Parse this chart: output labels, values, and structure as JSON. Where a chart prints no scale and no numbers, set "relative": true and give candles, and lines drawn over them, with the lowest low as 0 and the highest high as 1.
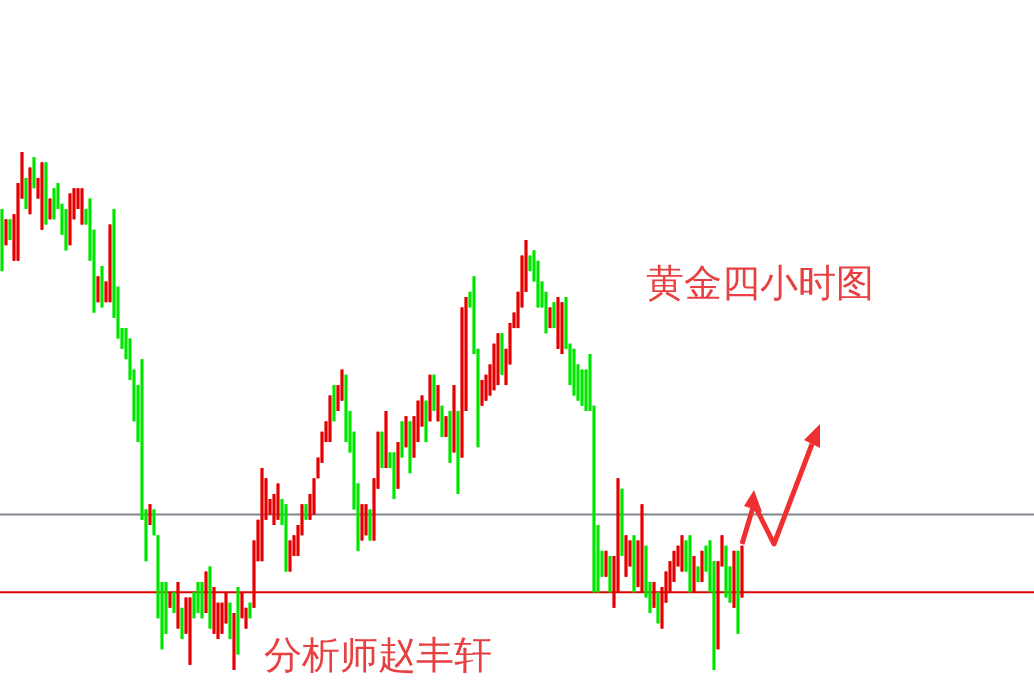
{
  "chart_data": {
    "type": "candlestick",
    "relative": true,
    "categories": [
      null,
      null,
      null,
      null,
      null,
      null,
      null,
      null,
      null,
      null,
      null,
      null,
      null,
      null,
      null,
      null,
      null,
      null,
      null,
      null,
      null,
      null,
      null,
      null,
      null,
      null,
      null,
      null,
      null,
      null,
      null,
      null,
      null,
      null,
      null,
      null,
      null,
      null,
      null,
      null,
      null,
      null,
      null,
      null,
      null,
      null,
      null,
      null,
      null,
      null,
      null,
      null,
      null,
      null,
      null,
      null,
      null,
      null,
      null,
      null,
      null,
      null,
      null,
      null,
      null,
      null,
      null,
      null,
      null,
      null,
      null,
      null,
      null,
      null,
      null,
      null,
      null,
      null,
      null,
      null,
      null,
      null,
      null,
      null,
      null,
      null,
      null,
      null,
      null,
      null,
      null,
      null,
      null,
      null,
      null,
      null,
      null,
      null,
      null,
      null,
      null,
      null,
      null,
      null,
      null,
      null,
      null,
      null,
      null,
      null,
      null,
      null,
      null,
      null,
      null,
      null,
      null,
      null,
      null,
      null,
      null,
      null,
      null,
      null,
      null,
      null,
      null,
      null,
      null,
      null,
      null,
      null,
      null,
      null,
      null,
      null,
      null,
      null,
      null,
      null,
      null,
      null,
      null,
      null,
      null,
      null,
      null,
      null,
      null,
      null,
      null,
      null,
      null,
      null,
      null,
      null,
      null,
      null,
      null,
      null,
      null,
      null,
      null,
      null,
      null,
      null,
      null,
      null,
      null,
      null,
      null,
      null,
      null,
      null,
      null,
      null,
      null,
      null,
      null,
      null,
      null,
      null,
      null,
      null,
      null,
      null
    ],
    "ohlc": [
      [
        0.89,
        0.89,
        0.77,
        0.77
      ],
      [
        0.82,
        0.87,
        0.82,
        0.87
      ],
      [
        0.87,
        0.87,
        0.83,
        0.83
      ],
      [
        0.79,
        0.88,
        0.79,
        0.88
      ],
      [
        0.79,
        0.94,
        0.79,
        0.94
      ],
      [
        0.91,
        1.0,
        0.91,
        1.0
      ],
      [
        0.95,
        0.95,
        0.89,
        0.89
      ],
      [
        0.88,
        0.97,
        0.88,
        0.97
      ],
      [
        0.99,
        0.99,
        0.93,
        0.93
      ],
      [
        0.91,
        0.95,
        0.91,
        0.95
      ],
      [
        0.85,
        0.98,
        0.85,
        0.98
      ],
      [
        0.98,
        0.98,
        0.86,
        0.86
      ],
      [
        0.87,
        0.91,
        0.87,
        0.91
      ],
      [
        0.93,
        0.93,
        0.87,
        0.87
      ],
      [
        0.94,
        0.94,
        0.89,
        0.89
      ],
      [
        0.9,
        0.9,
        0.84,
        0.84
      ],
      [
        0.89,
        0.89,
        0.81,
        0.81
      ],
      [
        0.82,
        0.92,
        0.82,
        0.92
      ],
      [
        0.87,
        0.93,
        0.87,
        0.93
      ],
      [
        0.89,
        0.93,
        0.89,
        0.93
      ],
      [
        0.86,
        0.93,
        0.86,
        0.93
      ],
      [
        0.89,
        0.89,
        0.86,
        0.86
      ],
      [
        0.91,
        0.91,
        0.79,
        0.79
      ],
      [
        0.85,
        0.85,
        0.69,
        0.69
      ],
      [
        0.71,
        0.76,
        0.71,
        0.76
      ],
      [
        0.78,
        0.78,
        0.7,
        0.7
      ],
      [
        0.71,
        0.75,
        0.71,
        0.75
      ],
      [
        0.71,
        0.86,
        0.71,
        0.86
      ],
      [
        0.89,
        0.89,
        0.68,
        0.68
      ],
      [
        0.74,
        0.74,
        0.64,
        0.64
      ],
      [
        0.66,
        0.66,
        0.62,
        0.62
      ],
      [
        0.66,
        0.66,
        0.6,
        0.6
      ],
      [
        0.64,
        0.64,
        0.56,
        0.56
      ],
      [
        0.58,
        0.58,
        0.48,
        0.48
      ],
      [
        0.55,
        0.55,
        0.44,
        0.44
      ],
      [
        0.6,
        0.6,
        0.29,
        0.29
      ],
      [
        0.31,
        0.31,
        0.21,
        0.21
      ],
      [
        0.28,
        0.32,
        0.28,
        0.32
      ],
      [
        0.31,
        0.31,
        0.26,
        0.26
      ],
      [
        0.26,
        0.26,
        0.1,
        0.1
      ],
      [
        0.17,
        0.17,
        0.04,
        0.04
      ],
      [
        0.17,
        0.17,
        0.07,
        0.07
      ],
      [
        0.12,
        0.15,
        0.12,
        0.15
      ],
      [
        0.15,
        0.15,
        0.11,
        0.11
      ],
      [
        0.08,
        0.17,
        0.08,
        0.17
      ],
      [
        0.12,
        0.12,
        0.06,
        0.06
      ],
      [
        0.07,
        0.14,
        0.07,
        0.14
      ],
      [
        0.01,
        0.14,
        0.01,
        0.14
      ],
      [
        0.15,
        0.15,
        0.1,
        0.1
      ],
      [
        0.17,
        0.17,
        0.11,
        0.11
      ],
      [
        0.17,
        0.17,
        0.1,
        0.1
      ],
      [
        0.11,
        0.19,
        0.11,
        0.19
      ],
      [
        0.2,
        0.2,
        0.08,
        0.08
      ],
      [
        0.07,
        0.16,
        0.07,
        0.16
      ],
      [
        0.06,
        0.13,
        0.06,
        0.13
      ],
      [
        0.07,
        0.13,
        0.07,
        0.13
      ],
      [
        0.09,
        0.15,
        0.09,
        0.15
      ],
      [
        0.13,
        0.13,
        0.06,
        0.06
      ],
      [
        0.0,
        0.11,
        0.0,
        0.11
      ],
      [
        0.16,
        0.16,
        0.03,
        0.03
      ],
      [
        0.1,
        0.15,
        0.1,
        0.15
      ],
      [
        0.08,
        0.12,
        0.08,
        0.12
      ],
      [
        0.13,
        0.13,
        0.1,
        0.1
      ],
      [
        0.12,
        0.25,
        0.12,
        0.25
      ],
      [
        0.21,
        0.29,
        0.21,
        0.29
      ],
      [
        0.21,
        0.39,
        0.21,
        0.39
      ],
      [
        0.29,
        0.37,
        0.29,
        0.37
      ],
      [
        0.3,
        0.33,
        0.3,
        0.33
      ],
      [
        0.28,
        0.34,
        0.28,
        0.34
      ],
      [
        0.29,
        0.36,
        0.29,
        0.36
      ],
      [
        0.33,
        0.33,
        0.28,
        0.28
      ],
      [
        0.32,
        0.32,
        0.19,
        0.19
      ],
      [
        0.19,
        0.25,
        0.19,
        0.25
      ],
      [
        0.22,
        0.26,
        0.22,
        0.26
      ],
      [
        0.22,
        0.28,
        0.22,
        0.28
      ],
      [
        0.26,
        0.32,
        0.26,
        0.32
      ],
      [
        0.32,
        0.32,
        0.29,
        0.29
      ],
      [
        0.29,
        0.34,
        0.29,
        0.34
      ],
      [
        0.3,
        0.37,
        0.3,
        0.37
      ],
      [
        0.37,
        0.41,
        0.37,
        0.41
      ],
      [
        0.4,
        0.46,
        0.4,
        0.46
      ],
      [
        0.44,
        0.48,
        0.44,
        0.48
      ],
      [
        0.44,
        0.53,
        0.44,
        0.53
      ],
      [
        0.55,
        0.55,
        0.48,
        0.48
      ],
      [
        0.5,
        0.55,
        0.5,
        0.55
      ],
      [
        0.52,
        0.58,
        0.52,
        0.58
      ],
      [
        0.57,
        0.57,
        0.44,
        0.44
      ],
      [
        0.5,
        0.5,
        0.42,
        0.42
      ],
      [
        0.46,
        0.46,
        0.31,
        0.31
      ],
      [
        0.36,
        0.36,
        0.23,
        0.23
      ],
      [
        0.25,
        0.32,
        0.25,
        0.32
      ],
      [
        0.26,
        0.32,
        0.26,
        0.32
      ],
      [
        0.31,
        0.31,
        0.25,
        0.25
      ],
      [
        0.25,
        0.37,
        0.25,
        0.37
      ],
      [
        0.35,
        0.46,
        0.35,
        0.46
      ],
      [
        0.46,
        0.46,
        0.39,
        0.39
      ],
      [
        0.39,
        0.5,
        0.39,
        0.5
      ],
      [
        0.42,
        0.42,
        0.39,
        0.39
      ],
      [
        0.42,
        0.42,
        0.33,
        0.33
      ],
      [
        0.35,
        0.44,
        0.35,
        0.44
      ],
      [
        0.48,
        0.48,
        0.41,
        0.41
      ],
      [
        0.43,
        0.49,
        0.43,
        0.49
      ],
      [
        0.48,
        0.48,
        0.38,
        0.38
      ],
      [
        0.41,
        0.49,
        0.41,
        0.49
      ],
      [
        0.44,
        0.52,
        0.44,
        0.52
      ],
      [
        0.47,
        0.53,
        0.47,
        0.53
      ],
      [
        0.52,
        0.52,
        0.44,
        0.44
      ],
      [
        0.48,
        0.57,
        0.48,
        0.57
      ],
      [
        0.57,
        0.57,
        0.5,
        0.5
      ],
      [
        0.48,
        0.55,
        0.48,
        0.55
      ],
      [
        0.51,
        0.51,
        0.45,
        0.45
      ],
      [
        0.45,
        0.49,
        0.45,
        0.49
      ],
      [
        0.5,
        0.5,
        0.4,
        0.4
      ],
      [
        0.42,
        0.55,
        0.42,
        0.55
      ],
      [
        0.5,
        0.5,
        0.34,
        0.34
      ],
      [
        0.41,
        0.7,
        0.41,
        0.7
      ],
      [
        0.5,
        0.72,
        0.5,
        0.72
      ],
      [
        0.73,
        0.73,
        0.7,
        0.7
      ],
      [
        0.76,
        0.76,
        0.61,
        0.61
      ],
      [
        0.62,
        0.62,
        0.43,
        0.43
      ],
      [
        0.51,
        0.56,
        0.51,
        0.56
      ],
      [
        0.52,
        0.57,
        0.52,
        0.57
      ],
      [
        0.53,
        0.59,
        0.53,
        0.59
      ],
      [
        0.54,
        0.63,
        0.54,
        0.63
      ],
      [
        0.55,
        0.65,
        0.55,
        0.65
      ],
      [
        0.65,
        0.65,
        0.57,
        0.57
      ],
      [
        0.55,
        0.62,
        0.55,
        0.62
      ],
      [
        0.59,
        0.67,
        0.59,
        0.67
      ],
      [
        0.66,
        0.69,
        0.66,
        0.69
      ],
      [
        0.66,
        0.73,
        0.66,
        0.73
      ],
      [
        0.7,
        0.8,
        0.7,
        0.8
      ],
      [
        0.73,
        0.83,
        0.73,
        0.83
      ],
      [
        0.8,
        0.8,
        0.77,
        0.77
      ],
      [
        0.81,
        0.81,
        0.75,
        0.75
      ],
      [
        0.79,
        0.79,
        0.7,
        0.7
      ],
      [
        0.75,
        0.75,
        0.7,
        0.7
      ],
      [
        0.73,
        0.73,
        0.65,
        0.65
      ],
      [
        0.66,
        0.7,
        0.66,
        0.7
      ],
      [
        0.71,
        0.71,
        0.66,
        0.66
      ],
      [
        0.62,
        0.72,
        0.62,
        0.72
      ],
      [
        0.61,
        0.71,
        0.61,
        0.71
      ],
      [
        0.72,
        0.72,
        0.62,
        0.62
      ],
      [
        0.63,
        0.63,
        0.55,
        0.55
      ],
      [
        0.62,
        0.62,
        0.53,
        0.53
      ],
      [
        0.59,
        0.59,
        0.52,
        0.52
      ],
      [
        0.58,
        0.58,
        0.51,
        0.51
      ],
      [
        0.58,
        0.58,
        0.5,
        0.5
      ],
      [
        0.61,
        0.61,
        0.5,
        0.5
      ],
      [
        0.51,
        0.51,
        0.15,
        0.15
      ],
      [
        0.28,
        0.28,
        0.15,
        0.15
      ],
      [
        0.23,
        0.23,
        0.18,
        0.18
      ],
      [
        0.18,
        0.23,
        0.18,
        0.23
      ],
      [
        0.22,
        0.22,
        0.15,
        0.15
      ],
      [
        0.12,
        0.22,
        0.12,
        0.22
      ],
      [
        0.15,
        0.37,
        0.15,
        0.37
      ],
      [
        0.35,
        0.35,
        0.22,
        0.22
      ],
      [
        0.18,
        0.26,
        0.18,
        0.26
      ],
      [
        0.2,
        0.25,
        0.2,
        0.25
      ],
      [
        0.26,
        0.26,
        0.15,
        0.15
      ],
      [
        0.16,
        0.25,
        0.16,
        0.25
      ],
      [
        0.15,
        0.32,
        0.15,
        0.32
      ],
      [
        0.24,
        0.24,
        0.14,
        0.14
      ],
      [
        0.17,
        0.17,
        0.11,
        0.11
      ],
      [
        0.12,
        0.17,
        0.12,
        0.17
      ],
      [
        0.15,
        0.15,
        0.09,
        0.09
      ],
      [
        0.08,
        0.16,
        0.08,
        0.16
      ],
      [
        0.13,
        0.19,
        0.13,
        0.19
      ],
      [
        0.15,
        0.21,
        0.15,
        0.21
      ],
      [
        0.17,
        0.23,
        0.17,
        0.23
      ],
      [
        0.2,
        0.24,
        0.2,
        0.24
      ],
      [
        0.19,
        0.26,
        0.19,
        0.26
      ],
      [
        0.25,
        0.25,
        0.19,
        0.19
      ],
      [
        0.26,
        0.26,
        0.15,
        0.15
      ],
      [
        0.15,
        0.22,
        0.15,
        0.22
      ],
      [
        0.2,
        0.2,
        0.17,
        0.17
      ],
      [
        0.17,
        0.23,
        0.17,
        0.23
      ],
      [
        0.24,
        0.24,
        0.19,
        0.19
      ],
      [
        0.25,
        0.25,
        0.15,
        0.15
      ],
      [
        0.21,
        0.21,
        0.0,
        0.0
      ],
      [
        0.04,
        0.21,
        0.04,
        0.21
      ],
      [
        0.2,
        0.26,
        0.2,
        0.26
      ],
      [
        0.24,
        0.24,
        0.14,
        0.14
      ],
      [
        0.2,
        0.2,
        0.13,
        0.13
      ],
      [
        0.12,
        0.23,
        0.12,
        0.23
      ],
      [
        0.23,
        0.23,
        0.07,
        0.07
      ],
      [
        0.14,
        0.24,
        0.14,
        0.24
      ]
    ],
    "colors": [
      "#00e600",
      "#e60000",
      "#00e600",
      "#e60000",
      "#e60000",
      "#e60000",
      "#00e600",
      "#e60000",
      "#00e600",
      "#e60000",
      "#e60000",
      "#00e600",
      "#e60000",
      "#00e600",
      "#00e600",
      "#00e600",
      "#00e600",
      "#e60000",
      "#e60000",
      "#e60000",
      "#e60000",
      "#00e600",
      "#00e600",
      "#00e600",
      "#e60000",
      "#00e600",
      "#e60000",
      "#e60000",
      "#00e600",
      "#00e600",
      "#00e600",
      "#00e600",
      "#00e600",
      "#00e600",
      "#00e600",
      "#00e600",
      "#00e600",
      "#e60000",
      "#00e600",
      "#00e600",
      "#00e600",
      "#00e600",
      "#e60000",
      "#00e600",
      "#e60000",
      "#00e600",
      "#e60000",
      "#e60000",
      "#00e600",
      "#00e600",
      "#00e600",
      "#e60000",
      "#00e600",
      "#e60000",
      "#e60000",
      "#e60000",
      "#e60000",
      "#00e600",
      "#e60000",
      "#00e600",
      "#e60000",
      "#e60000",
      "#00e600",
      "#e60000",
      "#e60000",
      "#e60000",
      "#e60000",
      "#e60000",
      "#e60000",
      "#e60000",
      "#00e600",
      "#00e600",
      "#e60000",
      "#e60000",
      "#e60000",
      "#e60000",
      "#00e600",
      "#e60000",
      "#e60000",
      "#e60000",
      "#e60000",
      "#e60000",
      "#e60000",
      "#00e600",
      "#e60000",
      "#e60000",
      "#00e600",
      "#00e600",
      "#00e600",
      "#00e600",
      "#e60000",
      "#e60000",
      "#00e600",
      "#e60000",
      "#e60000",
      "#00e600",
      "#e60000",
      "#00e600",
      "#00e600",
      "#e60000",
      "#00e600",
      "#e60000",
      "#00e600",
      "#e60000",
      "#e60000",
      "#e60000",
      "#00e600",
      "#e60000",
      "#00e600",
      "#e60000",
      "#00e600",
      "#e60000",
      "#00e600",
      "#e60000",
      "#00e600",
      "#e60000",
      "#e60000",
      "#00e600",
      "#00e600",
      "#00e600",
      "#e60000",
      "#e60000",
      "#e60000",
      "#e60000",
      "#e60000",
      "#00e600",
      "#e60000",
      "#e60000",
      "#e60000",
      "#e60000",
      "#e60000",
      "#e60000",
      "#00e600",
      "#00e600",
      "#00e600",
      "#00e600",
      "#00e600",
      "#e60000",
      "#00e600",
      "#e60000",
      "#e60000",
      "#00e600",
      "#00e600",
      "#00e600",
      "#00e600",
      "#00e600",
      "#00e600",
      "#00e600",
      "#00e600",
      "#00e600",
      "#00e600",
      "#e60000",
      "#00e600",
      "#e60000",
      "#e60000",
      "#00e600",
      "#e60000",
      "#e60000",
      "#00e600",
      "#e60000",
      "#e60000",
      "#00e600",
      "#00e600",
      "#e60000",
      "#00e600",
      "#e60000",
      "#e60000",
      "#e60000",
      "#e60000",
      "#e60000",
      "#e60000",
      "#00e600",
      "#00e600",
      "#e60000",
      "#00e600",
      "#e60000",
      "#00e600",
      "#00e600",
      "#00e600",
      "#e60000",
      "#e60000",
      "#00e600",
      "#00e600",
      "#e60000",
      "#00e600",
      "#e60000"
    ],
    "ref_lines": [
      {
        "axis": "y",
        "value": 0.3,
        "color": "#808890"
      },
      {
        "axis": "y",
        "value": 0.15,
        "color": "#e00000"
      }
    ],
    "annotations": [
      "黄金四小时图",
      "分析师赵丰轩"
    ]
  }
}
